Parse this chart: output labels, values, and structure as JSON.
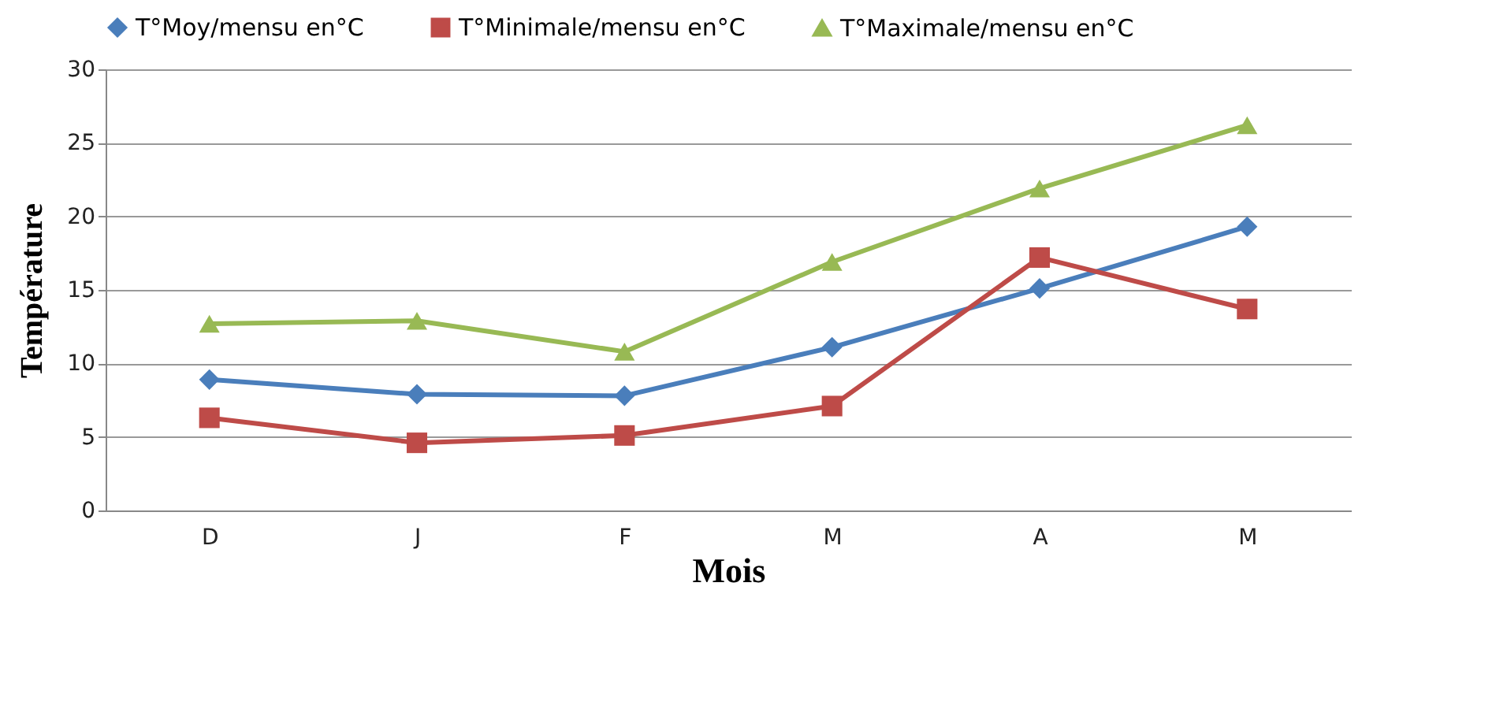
{
  "chart_data": {
    "type": "line",
    "xlabel": "Mois",
    "ylabel": "Température",
    "categories": [
      "D",
      "J",
      "F",
      "M",
      "A",
      "M"
    ],
    "series": [
      {
        "name": "T°Moy/mensu en°C",
        "color": "#4a7ebb",
        "marker": "diamond",
        "values": [
          8.9,
          7.9,
          7.8,
          11.1,
          15.1,
          19.3
        ]
      },
      {
        "name": "T°Minimale/mensu en°C",
        "color": "#be4b48",
        "marker": "square",
        "values": [
          6.3,
          4.6,
          5.1,
          7.1,
          17.2,
          13.7
        ]
      },
      {
        "name": "T°Maximale/mensu en°C",
        "color": "#98b954",
        "marker": "triangle",
        "values": [
          12.7,
          12.9,
          10.8,
          16.9,
          21.9,
          26.2
        ]
      }
    ],
    "ylim": [
      0,
      30
    ],
    "yticks": [
      0,
      5,
      10,
      15,
      20,
      25,
      30
    ],
    "grid": "y",
    "legend": "top",
    "line_style": "solid"
  }
}
